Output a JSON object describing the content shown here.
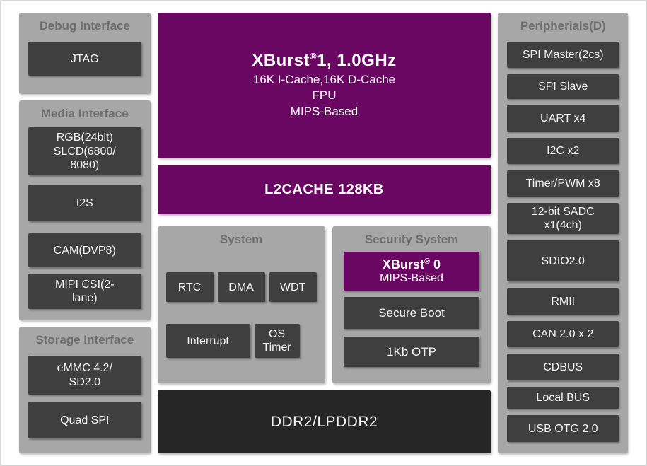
{
  "diagram": {
    "left": {
      "debug": {
        "title": "Debug Interface",
        "items": [
          "JTAG"
        ]
      },
      "media": {
        "title": "Media Interface",
        "items": [
          "RGB(24bit)\nSLCD(6800/\n8080)",
          "I2S",
          "CAM(DVP8)",
          "MIPI CSI(2-\nlane)"
        ]
      },
      "storage": {
        "title": "Storage Interface",
        "items": [
          "eMMC 4.2/\nSD2.0",
          "Quad SPI"
        ]
      }
    },
    "center": {
      "cpu1": {
        "name_pre": "XBurst",
        "name_sup": "®",
        "name_post": "1, 1.0GHz",
        "details": "16K I-Cache,16K D-Cache\nFPU\nMIPS-Based"
      },
      "l2cache_label": "L2CACHE 128KB",
      "system": {
        "title": "System",
        "row1": [
          "RTC",
          "DMA",
          "WDT"
        ],
        "row2": [
          "Interrupt",
          "OS\nTimer"
        ]
      },
      "security": {
        "title": "Security System",
        "cpu0": {
          "name_pre": "XBurst",
          "name_sup": "®",
          "name_post": " 0",
          "sub": "MIPS-Based"
        },
        "items": [
          "Secure Boot",
          "1Kb OTP"
        ]
      },
      "memory_label": "DDR2/LPDDR2"
    },
    "right": {
      "title": "Peripherials(D)",
      "items": [
        "SPI Master(2cs)",
        "SPI Slave",
        "UART x4",
        "I2C x2",
        "Timer/PWM x8",
        "12-bit SADC\nx1(4ch)",
        "SDIO2.0",
        "RMII",
        "CAN 2.0 x 2",
        "CDBUS",
        "Local BUS",
        "USB OTG 2.0"
      ]
    },
    "colors": {
      "purple": "#6A0762",
      "block_dark": "#3F3F3F",
      "group_gray": "#A7A7A7",
      "memory_black": "#262626",
      "title_gray": "#6E6E6E",
      "frame_border": "#D8D8D8",
      "block_text": "#F3F3F3"
    }
  }
}
